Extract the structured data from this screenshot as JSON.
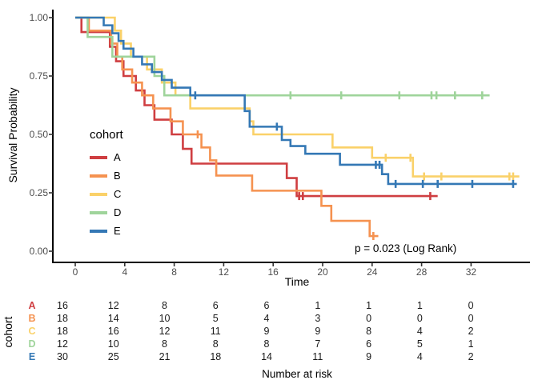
{
  "figure": {
    "ylabel": "Survival Probability",
    "xlabel": "Time",
    "legend_title": "cohort",
    "annotation": "p = 0.023 (Log Rank)",
    "risk_group_label": "cohort",
    "risk_caption": "Number at risk"
  },
  "chart_data": {
    "type": "line",
    "subtype": "kaplan-meier-step-curves",
    "title": "",
    "xlabel": "Time",
    "ylabel": "Survival Probability",
    "legend_title": "cohort",
    "legend_position": "inside-left",
    "annotation": "p = 0.023 (Log Rank)",
    "grid": false,
    "xlim": [
      0,
      36
    ],
    "ylim": [
      0,
      1
    ],
    "x_ticks": [
      0,
      4,
      8,
      12,
      16,
      20,
      24,
      28,
      32
    ],
    "y_ticks": [
      1.0,
      0.75,
      0.5,
      0.25,
      0.0
    ],
    "y_tick_labels": [
      "1.00",
      "0.75",
      "0.50",
      "0.25",
      "0.00"
    ],
    "series": [
      {
        "name": "A",
        "color": "#cf3e41",
        "points": [
          [
            0,
            1.0
          ],
          [
            0.5,
            0.938
          ],
          [
            2.8,
            0.875
          ],
          [
            3.3,
            0.813
          ],
          [
            3.9,
            0.75
          ],
          [
            4.9,
            0.688
          ],
          [
            5.6,
            0.625
          ],
          [
            6.4,
            0.563
          ],
          [
            7.8,
            0.5
          ],
          [
            8.7,
            0.438
          ],
          [
            9.4,
            0.375
          ],
          [
            17.1,
            0.313
          ],
          [
            17.9,
            0.236
          ]
        ],
        "end_time": 29.3,
        "censors": [
          [
            18.1,
            0.236
          ],
          [
            18.4,
            0.236
          ],
          [
            28.7,
            0.236
          ]
        ]
      },
      {
        "name": "B",
        "color": "#f59250",
        "points": [
          [
            0,
            1.0
          ],
          [
            1.1,
            0.944
          ],
          [
            2.9,
            0.889
          ],
          [
            3.4,
            0.833
          ],
          [
            3.8,
            0.778
          ],
          [
            4.6,
            0.722
          ],
          [
            5.4,
            0.667
          ],
          [
            6.3,
            0.611
          ],
          [
            7.7,
            0.556
          ],
          [
            8.7,
            0.5
          ],
          [
            10.2,
            0.444
          ],
          [
            10.9,
            0.389
          ],
          [
            11.4,
            0.324
          ],
          [
            14.3,
            0.259
          ],
          [
            19.9,
            0.194
          ],
          [
            20.7,
            0.13
          ],
          [
            23.8,
            0.065
          ]
        ],
        "end_time": 24.5,
        "censors": [
          [
            9.9,
            0.5
          ],
          [
            24.1,
            0.065
          ]
        ]
      },
      {
        "name": "C",
        "color": "#fad169",
        "points": [
          [
            0,
            1.0
          ],
          [
            3.2,
            0.944
          ],
          [
            3.7,
            0.889
          ],
          [
            4.5,
            0.833
          ],
          [
            5.8,
            0.778
          ],
          [
            7.0,
            0.722
          ],
          [
            8.1,
            0.667
          ],
          [
            9.3,
            0.611
          ],
          [
            14.1,
            0.556
          ],
          [
            14.4,
            0.5
          ],
          [
            20.8,
            0.444
          ],
          [
            24.0,
            0.4
          ],
          [
            27.3,
            0.32
          ]
        ],
        "end_time": 35.9,
        "censors": [
          [
            25.1,
            0.4
          ],
          [
            27.1,
            0.4
          ],
          [
            28.2,
            0.32
          ],
          [
            29.6,
            0.32
          ],
          [
            35.1,
            0.32
          ],
          [
            35.4,
            0.32
          ]
        ]
      },
      {
        "name": "D",
        "color": "#9fd49b",
        "points": [
          [
            0,
            1.0
          ],
          [
            1.0,
            0.917
          ],
          [
            3.0,
            0.833
          ],
          [
            6.4,
            0.75
          ],
          [
            7.2,
            0.667
          ]
        ],
        "end_time": 33.5,
        "censors": [
          [
            17.4,
            0.667
          ],
          [
            21.5,
            0.667
          ],
          [
            26.2,
            0.667
          ],
          [
            28.8,
            0.667
          ],
          [
            29.2,
            0.667
          ],
          [
            30.7,
            0.667
          ],
          [
            32.9,
            0.667
          ]
        ]
      },
      {
        "name": "E",
        "color": "#3478b5",
        "points": [
          [
            0,
            1.0
          ],
          [
            2.3,
            0.967
          ],
          [
            3.0,
            0.933
          ],
          [
            3.5,
            0.9
          ],
          [
            3.9,
            0.867
          ],
          [
            4.7,
            0.833
          ],
          [
            5.4,
            0.8
          ],
          [
            6.2,
            0.767
          ],
          [
            7.0,
            0.733
          ],
          [
            7.8,
            0.7
          ],
          [
            9.3,
            0.667
          ],
          [
            13.7,
            0.6
          ],
          [
            14.1,
            0.533
          ],
          [
            16.7,
            0.476
          ],
          [
            17.4,
            0.45
          ],
          [
            18.6,
            0.417
          ],
          [
            21.4,
            0.37
          ],
          [
            24.8,
            0.33
          ],
          [
            25.3,
            0.288
          ]
        ],
        "end_time": 35.7,
        "censors": [
          [
            9.7,
            0.667
          ],
          [
            16.3,
            0.533
          ],
          [
            24.3,
            0.37
          ],
          [
            24.6,
            0.37
          ],
          [
            25.9,
            0.288
          ],
          [
            28.1,
            0.288
          ],
          [
            29.3,
            0.288
          ],
          [
            32.1,
            0.288
          ],
          [
            35.4,
            0.288
          ]
        ]
      }
    ],
    "risk_table": {
      "label": "cohort",
      "caption": "Number at risk",
      "time_points": [
        0,
        4,
        8,
        12,
        16,
        20,
        24,
        28,
        32
      ],
      "rows": [
        {
          "name": "A",
          "color": "#cf3e41",
          "counts": [
            16,
            12,
            8,
            6,
            6,
            1,
            1,
            1,
            0
          ]
        },
        {
          "name": "B",
          "color": "#f59250",
          "counts": [
            18,
            14,
            10,
            5,
            4,
            3,
            0,
            0,
            0
          ]
        },
        {
          "name": "C",
          "color": "#fad169",
          "counts": [
            18,
            16,
            12,
            11,
            9,
            9,
            8,
            4,
            2
          ]
        },
        {
          "name": "D",
          "color": "#9fd49b",
          "counts": [
            12,
            10,
            8,
            8,
            8,
            7,
            6,
            5,
            1
          ]
        },
        {
          "name": "E",
          "color": "#3478b5",
          "counts": [
            30,
            25,
            21,
            18,
            14,
            11,
            9,
            4,
            2
          ]
        }
      ]
    }
  }
}
